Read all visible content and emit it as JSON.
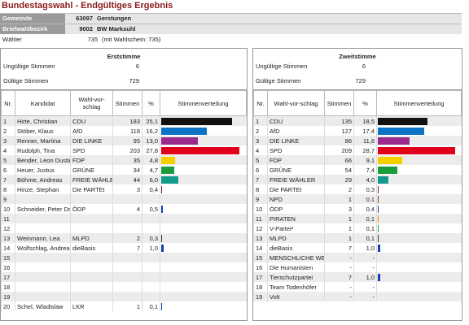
{
  "header": {
    "title": "Bundestagswahl - Endgültiges Ergebnis"
  },
  "info": [
    {
      "label": "Gemeinde",
      "code": "63097",
      "name": "Gerstungen"
    },
    {
      "label": "Briefwahlbezirk",
      "code": "9002",
      "name": "BW Marksuhl"
    }
  ],
  "voters": {
    "label": "Wähler",
    "value": 735,
    "note": "(mit Wahlschein: 735)"
  },
  "panels": [
    {
      "title": "Erststimme",
      "invalid": {
        "label": "Ungültige Stimmen",
        "value": 6
      },
      "valid": {
        "label": "Gültige Stimmen",
        "value": 729
      },
      "columns": [
        "Nr.",
        "Kandidat",
        "Wahl-vor-schlag",
        "Stimmen",
        "%",
        "Stimmenverteilung"
      ],
      "rows": [
        {
          "nr": 1,
          "candidate": "Hirte, Christian",
          "party": "CDU",
          "votes": 183,
          "percent": "25,1",
          "color": "#111111"
        },
        {
          "nr": 2,
          "candidate": "Stöber, Klaus",
          "party": "AfD",
          "votes": 118,
          "percent": "16,2",
          "color": "#0a73c6"
        },
        {
          "nr": 3,
          "candidate": "Renner, Martina",
          "party": "DIE LINKE",
          "votes": 95,
          "percent": "13,0",
          "color": "#9a2a8c"
        },
        {
          "nr": 4,
          "candidate": "Rudolph, Tina",
          "party": "SPD",
          "votes": 203,
          "percent": "27,8",
          "color": "#e0001a"
        },
        {
          "nr": 5,
          "candidate": "Bender, Leon Dustin",
          "party": "FDP",
          "votes": 35,
          "percent": "4,8",
          "color": "#f5d000"
        },
        {
          "nr": 6,
          "candidate": "Heuer, Justus",
          "party": "GRÜNE",
          "votes": 34,
          "percent": "4,7",
          "color": "#1a9c3c"
        },
        {
          "nr": 7,
          "candidate": "Böhme, Andreas",
          "party": "FREIE WÄHLER",
          "votes": 44,
          "percent": "6,0",
          "color": "#139a8c"
        },
        {
          "nr": 8,
          "candidate": "Hinze, Stephan",
          "party": "Die PARTEI",
          "votes": 3,
          "percent": "0,4",
          "color": "#8b1a2a"
        },
        {
          "nr": 9
        },
        {
          "nr": 10,
          "candidate": "Schneider, Peter Dr.",
          "party": "ÖDP",
          "votes": 4,
          "percent": "0,5",
          "color": "#1a3cb4"
        },
        {
          "nr": 11
        },
        {
          "nr": 12
        },
        {
          "nr": 13,
          "candidate": "Weinmann, Lea",
          "party": "MLPD",
          "votes": 2,
          "percent": "0,3",
          "color": "#333333"
        },
        {
          "nr": 14,
          "candidate": "Wolfschlag, Andreas",
          "party": "dieBasis",
          "votes": 7,
          "percent": "1,0",
          "color": "#1a3cb4"
        },
        {
          "nr": 15
        },
        {
          "nr": 16
        },
        {
          "nr": 17
        },
        {
          "nr": 18
        },
        {
          "nr": 19
        },
        {
          "nr": 20,
          "candidate": "Schel, Wladislaw",
          "party": "LKR",
          "votes": 1,
          "percent": "0,1",
          "color": "#1a3cb4"
        }
      ]
    },
    {
      "title": "Zweitstimme",
      "invalid": {
        "label": "Ungültige Stimmen",
        "value": 6
      },
      "valid": {
        "label": "Gültige Stimmen",
        "value": 729
      },
      "columns": [
        "Nr.",
        "Wahl-vor-schlag",
        "Stimmen",
        "%",
        "Stimmenverteilung"
      ],
      "rows": [
        {
          "nr": 1,
          "party": "CDU",
          "votes": 135,
          "percent": "18,5",
          "color": "#111111"
        },
        {
          "nr": 2,
          "party": "AfD",
          "votes": 127,
          "percent": "17,4",
          "color": "#0a73c6"
        },
        {
          "nr": 3,
          "party": "DIE LINKE",
          "votes": 86,
          "percent": "11,8",
          "color": "#9a2a8c"
        },
        {
          "nr": 4,
          "party": "SPD",
          "votes": 209,
          "percent": "28,7",
          "color": "#e0001a"
        },
        {
          "nr": 5,
          "party": "FDP",
          "votes": 66,
          "percent": "9,1",
          "color": "#f5d000"
        },
        {
          "nr": 6,
          "party": "GRÜNE",
          "votes": 54,
          "percent": "7,4",
          "color": "#1a9c3c"
        },
        {
          "nr": 7,
          "party": "FREIE WÄHLER",
          "votes": 29,
          "percent": "4,0",
          "color": "#139a8c"
        },
        {
          "nr": 8,
          "party": "Die PARTEI",
          "votes": 2,
          "percent": "0,3",
          "color": "#8b1a2a"
        },
        {
          "nr": 9,
          "party": "NPD",
          "votes": 1,
          "percent": "0,1",
          "color": "#8b4513"
        },
        {
          "nr": 10,
          "party": "ÖDP",
          "votes": 3,
          "percent": "0,4",
          "color": "#1a3cb4"
        },
        {
          "nr": 11,
          "party": "PIRATEN",
          "votes": 1,
          "percent": "0,1",
          "color": "#f28c00"
        },
        {
          "nr": 12,
          "party": "V-Partei³",
          "votes": 1,
          "percent": "0,1",
          "color": "#1a9c3c"
        },
        {
          "nr": 13,
          "party": "MLPD",
          "votes": 1,
          "percent": "0,1",
          "color": "#333333"
        },
        {
          "nr": 14,
          "party": "dieBasis",
          "votes": 7,
          "percent": "1,0",
          "color": "#1a3cb4"
        },
        {
          "nr": 15,
          "party": "MENSCHLICHE WELT",
          "votes": "-",
          "percent": "-"
        },
        {
          "nr": 16,
          "party": "Die Humanisten",
          "votes": "-",
          "percent": "-"
        },
        {
          "nr": 17,
          "party": "Tierschutzpartei",
          "votes": 7,
          "percent": "1,0",
          "color": "#1a3cb4"
        },
        {
          "nr": 18,
          "party": "Team Todenhöfer",
          "votes": "-",
          "percent": "-"
        },
        {
          "nr": 19,
          "party": "Volt",
          "votes": "-",
          "percent": "-"
        }
      ]
    }
  ]
}
